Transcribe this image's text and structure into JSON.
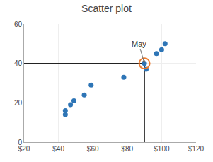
{
  "chart_data": {
    "type": "scatter",
    "title": "Scatter plot",
    "x": [
      44,
      44,
      47,
      49,
      55,
      59,
      78,
      90,
      91,
      97,
      100,
      102
    ],
    "values": [
      14,
      16,
      19,
      21,
      24,
      29,
      33,
      40,
      37,
      45,
      47,
      50
    ],
    "color": "#2E75B6",
    "highlight": {
      "x": 90,
      "y": 40,
      "color": "#ED7D31"
    },
    "reference_lines": [
      {
        "x": [
          20,
          90
        ],
        "y": [
          40,
          40
        ],
        "color": "#222222"
      },
      {
        "x": [
          90,
          90
        ],
        "y": [
          0,
          40
        ],
        "color": "#222222"
      }
    ],
    "annotations": [
      {
        "text": "May",
        "x": 90,
        "y": 40
      }
    ],
    "xlim": [
      20,
      120
    ],
    "xticks": [
      {
        "value": 20,
        "label": "$20"
      },
      {
        "value": 40,
        "label": "$40"
      },
      {
        "value": 60,
        "label": "$60"
      },
      {
        "value": 80,
        "label": "$80"
      },
      {
        "value": 100,
        "label": "$100"
      },
      {
        "value": 120,
        "label": "$120"
      }
    ],
    "ylim": [
      0,
      60
    ],
    "yticks": [
      0,
      20,
      40,
      60
    ],
    "grid": true
  }
}
